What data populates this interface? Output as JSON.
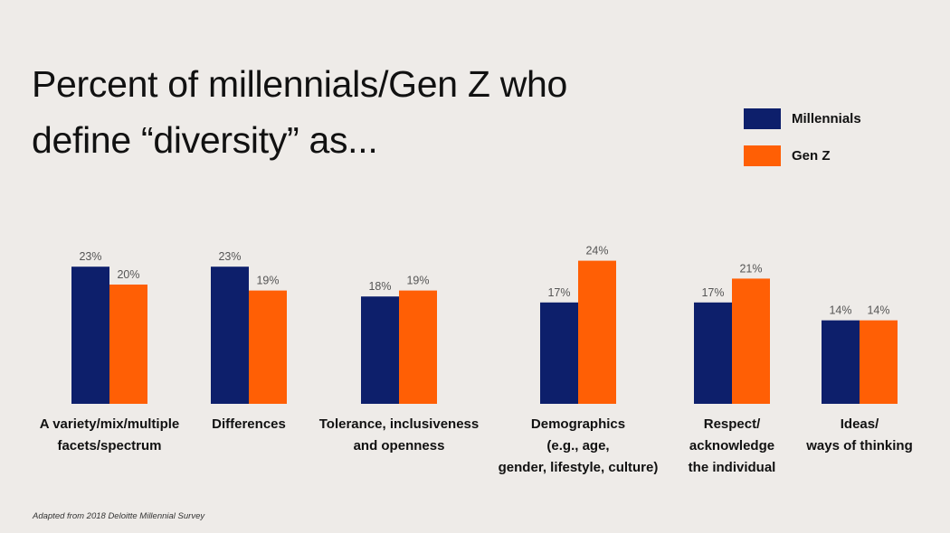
{
  "chart_data": {
    "type": "bar",
    "title": [
      "Percent of millennials/Gen Z who",
      "define “diversity” as..."
    ],
    "categories": [
      [
        "A variety/mix/multiple",
        "facets/spectrum"
      ],
      [
        "Differences"
      ],
      [
        "Tolerance, inclusiveness",
        "and openness"
      ],
      [
        "Demographics",
        "(e.g., age,",
        "gender, lifestyle, culture)"
      ],
      [
        "Respect/",
        "acknowledge",
        "the individual"
      ],
      [
        "Ideas/",
        "ways of thinking"
      ]
    ],
    "series": [
      {
        "name": "Millennials",
        "color": "#0d1f6b",
        "values": [
          23,
          23,
          18,
          17,
          17,
          14
        ]
      },
      {
        "name": "Gen Z",
        "color": "#ff5f05",
        "values": [
          20,
          19,
          19,
          24,
          21,
          14
        ]
      }
    ],
    "value_suffix": "%",
    "ylim": [
      0,
      25
    ],
    "legend_position": "top-right",
    "grid": false
  },
  "footer": {
    "source": "Adapted from 2018 Deloitte Millennial Survey"
  }
}
